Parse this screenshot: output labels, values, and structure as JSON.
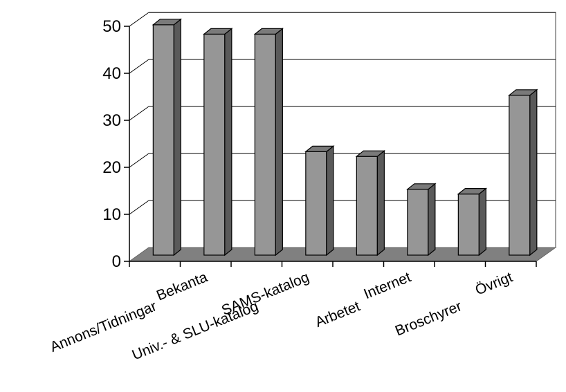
{
  "chart_data": {
    "type": "bar",
    "categories": [
      "Annons/Tidningar",
      "Bekanta",
      "Univ.- & SLU-katalog",
      "SAMS-katalog",
      "Arbetet",
      "Internet",
      "Broschyrer",
      "Övrigt"
    ],
    "values": [
      49,
      47,
      47,
      22,
      21,
      14,
      13,
      34
    ],
    "title": "",
    "xlabel": "",
    "ylabel": "",
    "ylim": [
      0,
      50
    ],
    "yticks": [
      0,
      10,
      20,
      30,
      40,
      50
    ],
    "grid": true,
    "legend": "none",
    "style": "3d-column",
    "colors": {
      "bar_front": "#969696",
      "bar_side": "#5a5a5a",
      "bar_top": "#7a7a7a",
      "floor": "#808080",
      "grid": "#000000"
    }
  }
}
